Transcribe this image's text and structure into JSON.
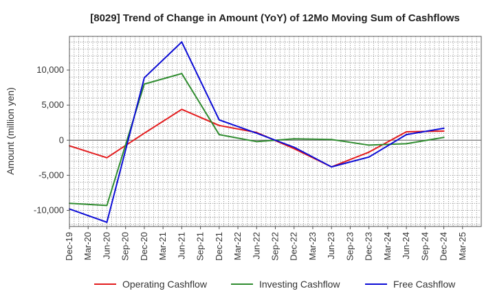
{
  "chart_data": {
    "type": "line",
    "title": "[8029]  Trend of Change in Amount (YoY) of 12Mo Moving Sum of Cashflows",
    "ylabel": "Amount (million yen)",
    "xlabel": "",
    "ylim": [
      -12300,
      14800
    ],
    "yticks": [
      -10000,
      -5000,
      0,
      5000,
      10000
    ],
    "ytick_labels": [
      "-10,000",
      "-5,000",
      "0",
      "5,000",
      "10,000"
    ],
    "categories": [
      "Dec-19",
      "Mar-20",
      "Jun-20",
      "Sep-20",
      "Dec-20",
      "Mar-21",
      "Jun-21",
      "Sep-21",
      "Dec-21",
      "Mar-22",
      "Jun-22",
      "Sep-22",
      "Dec-22",
      "Mar-23",
      "Jun-23",
      "Sep-23",
      "Dec-23",
      "Mar-24",
      "Jun-24",
      "Sep-24",
      "Dec-24",
      "Mar-25"
    ],
    "grid": true,
    "legend_position": "bottom",
    "series": [
      {
        "name": "Operating Cashflow",
        "color": "#e31a1c",
        "values": [
          -800,
          null,
          -2500,
          null,
          1000,
          null,
          4400,
          null,
          2100,
          null,
          1100,
          null,
          -1200,
          null,
          -3800,
          null,
          -1700,
          null,
          1200,
          null,
          1300,
          null
        ]
      },
      {
        "name": "Investing Cashflow",
        "color": "#2e8b2e",
        "values": [
          -9000,
          null,
          -9300,
          null,
          8000,
          null,
          9500,
          null,
          800,
          null,
          -200,
          null,
          200,
          null,
          100,
          null,
          -700,
          null,
          -500,
          null,
          400,
          null
        ]
      },
      {
        "name": "Free Cashflow",
        "color": "#0a0ad6",
        "values": [
          -9800,
          null,
          -11700,
          null,
          8900,
          null,
          14000,
          null,
          2900,
          null,
          1000,
          null,
          -1000,
          null,
          -3800,
          null,
          -2400,
          null,
          800,
          null,
          1700,
          null
        ]
      }
    ]
  }
}
